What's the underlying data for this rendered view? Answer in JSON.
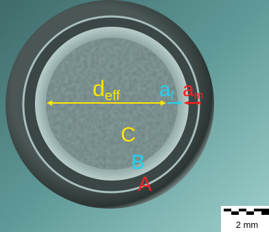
{
  "annotations": {
    "diameter": {
      "base": "d",
      "sub": "eff"
    },
    "filament_gap": {
      "base": "a",
      "sub": "f"
    },
    "matrix_gap": {
      "base": "a",
      "sub": "m"
    },
    "regions": [
      "C",
      "B",
      "A"
    ]
  },
  "scale_bar": {
    "label": "2 mm"
  }
}
